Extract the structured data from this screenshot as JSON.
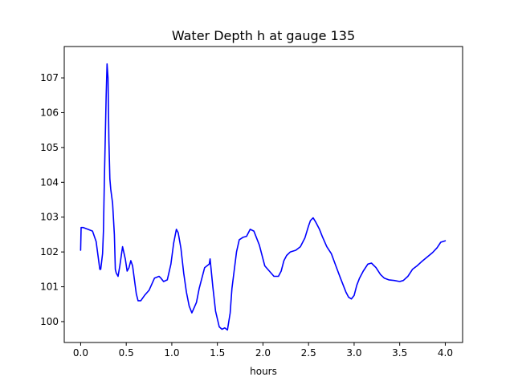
{
  "chart_data": {
    "type": "line",
    "title": "Water Depth h at gauge 135",
    "xlabel": "hours",
    "ylabel": "",
    "xlim": [
      -0.18,
      4.19
    ],
    "ylim": [
      99.4,
      107.9
    ],
    "grid": false,
    "x_ticks": [
      0.0,
      0.5,
      1.0,
      1.5,
      2.0,
      2.5,
      3.0,
      3.5,
      4.0
    ],
    "x_tick_labels": [
      "0.0",
      "0.5",
      "1.0",
      "1.5",
      "2.0",
      "2.5",
      "3.0",
      "3.5",
      "4.0"
    ],
    "y_ticks": [
      100,
      101,
      102,
      103,
      104,
      105,
      106,
      107
    ],
    "y_tick_labels": [
      "100",
      "101",
      "102",
      "103",
      "104",
      "105",
      "106",
      "107"
    ],
    "series": [
      {
        "color": "#0000ff",
        "x": [
          0.0,
          0.005,
          0.03,
          0.08,
          0.13,
          0.17,
          0.19,
          0.21,
          0.22,
          0.24,
          0.25,
          0.26,
          0.28,
          0.29,
          0.3,
          0.31,
          0.32,
          0.33,
          0.35,
          0.37,
          0.38,
          0.39,
          0.41,
          0.43,
          0.46,
          0.49,
          0.51,
          0.53,
          0.55,
          0.57,
          0.59,
          0.61,
          0.63,
          0.66,
          0.7,
          0.75,
          0.81,
          0.86,
          0.88,
          0.91,
          0.95,
          0.99,
          1.02,
          1.05,
          1.07,
          1.1,
          1.13,
          1.16,
          1.19,
          1.22,
          1.27,
          1.3,
          1.36,
          1.41,
          1.42,
          1.45,
          1.48,
          1.52,
          1.55,
          1.58,
          1.61,
          1.64,
          1.66,
          1.71,
          1.74,
          1.78,
          1.82,
          1.86,
          1.9,
          1.93,
          1.96,
          2.02,
          2.07,
          2.12,
          2.17,
          2.2,
          2.23,
          2.26,
          2.3,
          2.36,
          2.41,
          2.46,
          2.5,
          2.52,
          2.55,
          2.58,
          2.62,
          2.65,
          2.7,
          2.75,
          2.8,
          2.85,
          2.91,
          2.94,
          2.97,
          3.0,
          3.03,
          3.06,
          3.1,
          3.15,
          3.19,
          3.24,
          3.29,
          3.33,
          3.38,
          3.44,
          3.5,
          3.54,
          3.59,
          3.64,
          3.69,
          3.74,
          3.8,
          3.86,
          3.91,
          3.95,
          4.0
        ],
        "values": [
          102.05,
          102.7,
          102.7,
          102.65,
          102.6,
          102.3,
          101.9,
          101.5,
          101.5,
          101.95,
          102.6,
          104.0,
          106.5,
          107.4,
          107.0,
          105.2,
          104.1,
          103.8,
          103.4,
          102.5,
          101.5,
          101.4,
          101.3,
          101.6,
          102.15,
          101.8,
          101.45,
          101.55,
          101.75,
          101.6,
          101.2,
          100.8,
          100.6,
          100.6,
          100.75,
          100.9,
          101.25,
          101.3,
          101.25,
          101.15,
          101.2,
          101.65,
          102.25,
          102.65,
          102.55,
          102.1,
          101.4,
          100.85,
          100.45,
          100.25,
          100.55,
          100.95,
          101.55,
          101.65,
          101.8,
          101.0,
          100.3,
          99.85,
          99.78,
          99.82,
          99.76,
          100.25,
          100.95,
          102.0,
          102.35,
          102.42,
          102.45,
          102.65,
          102.6,
          102.4,
          102.2,
          101.6,
          101.45,
          101.3,
          101.3,
          101.45,
          101.75,
          101.9,
          102.0,
          102.05,
          102.15,
          102.4,
          102.75,
          102.9,
          102.98,
          102.85,
          102.65,
          102.45,
          102.15,
          101.95,
          101.6,
          101.25,
          100.85,
          100.7,
          100.65,
          100.75,
          101.05,
          101.25,
          101.45,
          101.65,
          101.68,
          101.55,
          101.35,
          101.25,
          101.2,
          101.18,
          101.15,
          101.18,
          101.3,
          101.5,
          101.6,
          101.72,
          101.85,
          101.98,
          102.12,
          102.28,
          102.32
        ]
      }
    ]
  }
}
